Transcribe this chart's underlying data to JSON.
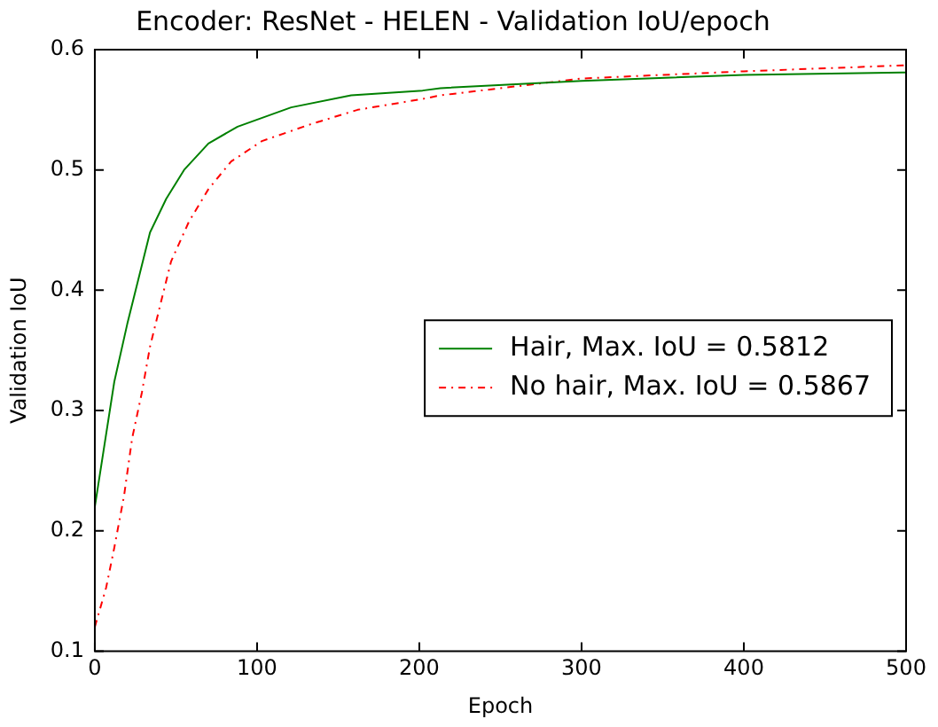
{
  "chart_data": {
    "type": "line",
    "title": "Encoder: ResNet - HELEN - Validation IoU/epoch",
    "xlabel": "Epoch",
    "ylabel": "Validation IoU",
    "xlim": [
      0,
      500
    ],
    "xticks": [
      0,
      100,
      200,
      300,
      400,
      500
    ],
    "ylim": [
      0.1,
      0.6
    ],
    "yticks": [
      0.1,
      0.2,
      0.3,
      0.4,
      0.5,
      0.6
    ],
    "grid": false,
    "legend": "center right",
    "marker": "none",
    "series": [
      {
        "name": "Hair, Max. IoU = 0.5812",
        "color": "#008000",
        "line_style": "solid",
        "x": [
          0,
          12,
          20,
          27,
          34,
          44,
          55,
          70,
          88,
          121,
          158,
          202,
          213,
          300,
          400,
          500
        ],
        "values": [
          0.22,
          0.324,
          0.372,
          0.41,
          0.448,
          0.476,
          0.5,
          0.522,
          0.536,
          0.552,
          0.562,
          0.566,
          0.568,
          0.574,
          0.579,
          0.581
        ]
      },
      {
        "name": "No hair, Max. IoU = 0.5867",
        "color": "#ff0000",
        "line_style": "dashed",
        "x": [
          0,
          7,
          12,
          18,
          23,
          29,
          34,
          40,
          47,
          58,
          70,
          84,
          103,
          133,
          162,
          202,
          213,
          300,
          400,
          500
        ],
        "values": [
          0.12,
          0.153,
          0.186,
          0.229,
          0.277,
          0.315,
          0.353,
          0.386,
          0.424,
          0.457,
          0.484,
          0.507,
          0.524,
          0.538,
          0.55,
          0.559,
          0.562,
          0.576,
          0.582,
          0.587
        ]
      }
    ]
  }
}
